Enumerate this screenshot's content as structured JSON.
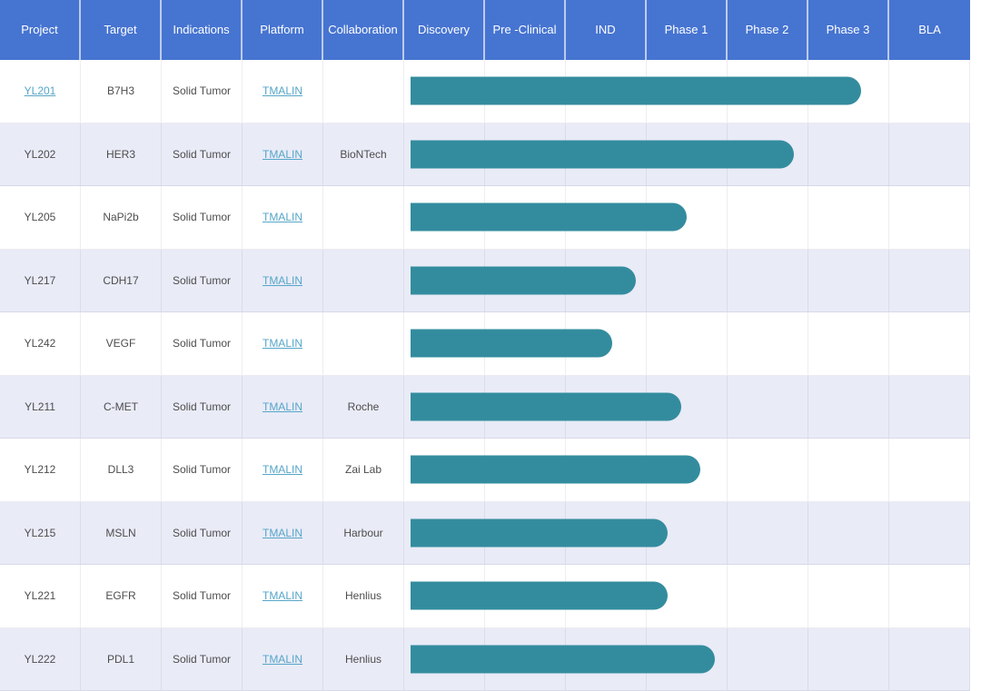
{
  "columns": [
    "Project",
    "Target",
    "Indications",
    "Platform",
    "Collaboration",
    "Discovery",
    "Pre -Clinical",
    "IND",
    "Phase 1",
    "Phase 2",
    "Phase 3",
    "BLA"
  ],
  "phase_columns": [
    "Discovery",
    "Pre -Clinical",
    "IND",
    "Phase 1",
    "Phase 2",
    "Phase 3",
    "BLA"
  ],
  "rows": [
    {
      "project": "YL201",
      "project_is_link": true,
      "target": "B7H3",
      "indications": "Solid Tumor",
      "platform": "TMALIN",
      "collaboration": "",
      "bar_end_units": 5.65,
      "stage_reached": "Phase 3"
    },
    {
      "project": "YL202",
      "project_is_link": false,
      "target": "HER3",
      "indications": "Solid Tumor",
      "platform": "TMALIN",
      "collaboration": "BioNTech",
      "bar_end_units": 4.82,
      "stage_reached": "Phase 2"
    },
    {
      "project": "YL205",
      "project_is_link": false,
      "target": "NaPi2b",
      "indications": "Solid Tumor",
      "platform": "TMALIN",
      "collaboration": "",
      "bar_end_units": 3.49,
      "stage_reached": "Phase 1"
    },
    {
      "project": "YL217",
      "project_is_link": false,
      "target": "CDH17",
      "indications": "Solid Tumor",
      "platform": "TMALIN",
      "collaboration": "",
      "bar_end_units": 2.87,
      "stage_reached": "IND"
    },
    {
      "project": "YL242",
      "project_is_link": false,
      "target": "VEGF",
      "indications": "Solid Tumor",
      "platform": "TMALIN",
      "collaboration": "",
      "bar_end_units": 2.57,
      "stage_reached": "IND"
    },
    {
      "project": "YL211",
      "project_is_link": false,
      "target": "C-MET",
      "indications": "Solid Tumor",
      "platform": "TMALIN",
      "collaboration": "Roche",
      "bar_end_units": 3.43,
      "stage_reached": "Phase 1"
    },
    {
      "project": "YL212",
      "project_is_link": false,
      "target": "DLL3",
      "indications": "Solid Tumor",
      "platform": "TMALIN",
      "collaboration": "Zai Lab",
      "bar_end_units": 3.66,
      "stage_reached": "Phase 1"
    },
    {
      "project": "YL215",
      "project_is_link": false,
      "target": "MSLN",
      "indications": "Solid Tumor",
      "platform": "TMALIN",
      "collaboration": "Harbour",
      "bar_end_units": 3.26,
      "stage_reached": "Phase 1"
    },
    {
      "project": "YL221",
      "project_is_link": false,
      "target": "EGFR",
      "indications": "Solid Tumor",
      "platform": "TMALIN",
      "collaboration": "Henlius",
      "bar_end_units": 3.26,
      "stage_reached": "Phase 1"
    },
    {
      "project": "YL222",
      "project_is_link": false,
      "target": "PDL1",
      "indications": "Solid Tumor",
      "platform": "TMALIN",
      "collaboration": "Henlius",
      "bar_end_units": 3.84,
      "stage_reached": "Phase 1"
    }
  ],
  "colors": {
    "header_bg": "#4674d1",
    "header_text": "#ffffff",
    "bar_teal": "#338c9e",
    "link_blue": "#56a6c8",
    "alt_row_bg": "#e9ebf7",
    "body_text": "#4d4d4d"
  },
  "chart_data": {
    "type": "bar",
    "orientation": "horizontal",
    "title": "",
    "categories": [
      "YL201",
      "YL202",
      "YL205",
      "YL217",
      "YL242",
      "YL211",
      "YL212",
      "YL215",
      "YL221",
      "YL222"
    ],
    "values": [
      5.65,
      4.82,
      3.49,
      2.87,
      2.57,
      3.43,
      3.66,
      3.26,
      3.26,
      3.84
    ],
    "value_meaning": "pipeline progress in stage-column units; 0 = start of Discovery, 1 unit = one stage column, 7 = end of BLA",
    "stage_reached": [
      "Phase 3",
      "Phase 2",
      "Phase 1",
      "IND",
      "IND",
      "Phase 1",
      "Phase 1",
      "Phase 1",
      "Phase 1",
      "Phase 1"
    ],
    "stage_axis": [
      "Discovery",
      "Pre -Clinical",
      "IND",
      "Phase 1",
      "Phase 2",
      "Phase 3",
      "BLA"
    ],
    "xlim": [
      0,
      7
    ],
    "grid": true,
    "legend": false
  }
}
